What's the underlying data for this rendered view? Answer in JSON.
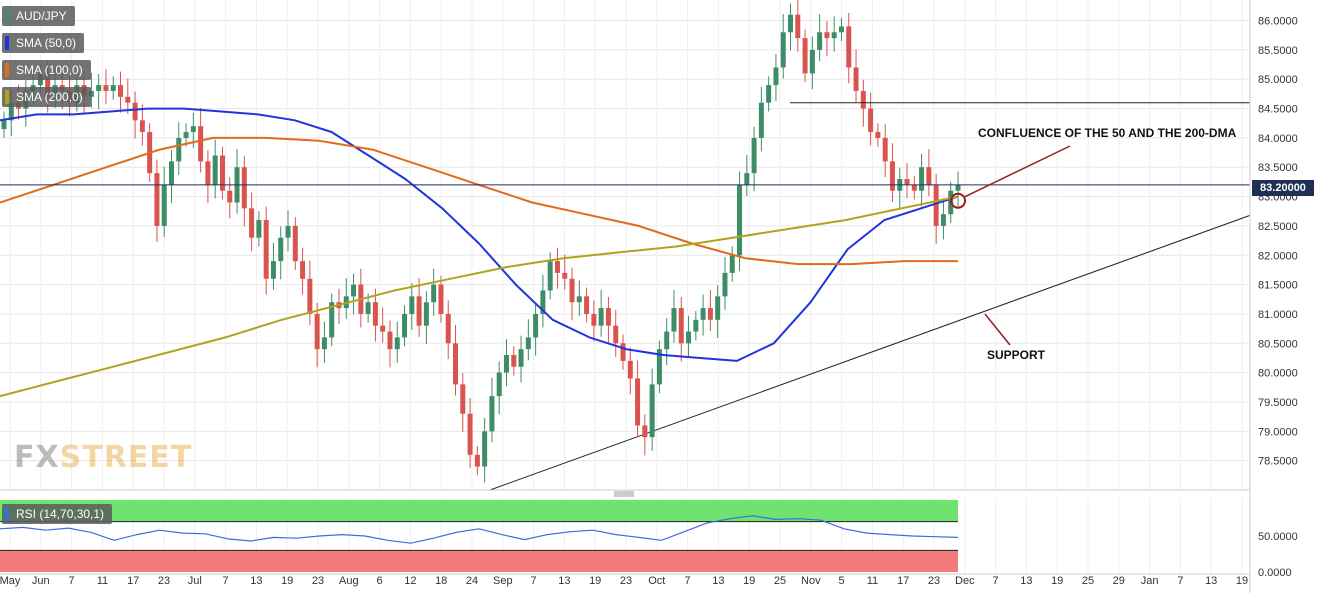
{
  "colors": {
    "sma50": "#2233dd",
    "sma100": "#e26a1b",
    "sma200": "#b2a21e",
    "bull": "#3e8d69",
    "bear": "#d9534f",
    "rsi_line": "#3a6fd8",
    "overbought": "#6fe36f",
    "oversold": "#f27b7b",
    "annot_line": "#9b1c1c"
  },
  "legend": {
    "symbol": "AUD/JPY",
    "sma50": "SMA (50,0)",
    "sma100": "SMA (100,0)",
    "sma200": "SMA (200,0)",
    "rsi": "RSI (14,70,30,1)"
  },
  "current_price_label": "83.20000",
  "annotations": {
    "confluence": "CONFLUENCE OF THE 50 AND THE 200-DMA",
    "support": "SUPPORT"
  },
  "logo": {
    "part1": "FX",
    "part2": "STREET"
  },
  "chart_data": [
    {
      "type": "candlestick",
      "title": "AUD/JPY",
      "ylim": [
        78.0,
        86.35
      ],
      "yticks": [
        "86.0000",
        "85.5000",
        "85.0000",
        "84.5000",
        "84.0000",
        "83.5000",
        "83.0000",
        "82.5000",
        "82.0000",
        "81.5000",
        "81.0000",
        "80.5000",
        "80.0000",
        "79.5000",
        "79.0000",
        "78.5000"
      ],
      "xticks": [
        "May",
        "Jun",
        "7",
        "11",
        "17",
        "23",
        "Jul",
        "7",
        "13",
        "19",
        "23",
        "Aug",
        "6",
        "12",
        "18",
        "24",
        "Sep",
        "7",
        "13",
        "19",
        "23",
        "Oct",
        "7",
        "13",
        "19",
        "25",
        "Nov",
        "5",
        "11",
        "17",
        "23",
        "Dec",
        "7",
        "13",
        "19",
        "25",
        "29",
        "Jan",
        "7",
        "13",
        "19"
      ],
      "closes": [
        84.3,
        84.6,
        84.5,
        84.8,
        84.9,
        85.1,
        84.7,
        84.9,
        84.8,
        84.6,
        84.9,
        84.7,
        84.8,
        84.9,
        84.8,
        84.9,
        84.7,
        84.6,
        84.3,
        84.1,
        83.4,
        82.5,
        83.2,
        83.6,
        84.0,
        84.1,
        84.2,
        83.6,
        83.2,
        83.7,
        83.1,
        82.9,
        83.5,
        82.8,
        82.3,
        82.6,
        81.6,
        81.9,
        82.3,
        82.5,
        81.9,
        81.6,
        81.0,
        80.4,
        80.6,
        81.2,
        81.1,
        81.3,
        81.5,
        81.0,
        81.2,
        80.8,
        80.7,
        80.4,
        80.6,
        81.0,
        81.3,
        80.8,
        81.2,
        81.5,
        81.0,
        80.5,
        79.8,
        79.3,
        78.6,
        78.4,
        79.0,
        79.6,
        80.0,
        80.3,
        80.1,
        80.4,
        80.6,
        81.0,
        81.4,
        81.9,
        81.7,
        81.6,
        81.2,
        81.3,
        81.0,
        80.8,
        81.1,
        80.8,
        80.5,
        80.2,
        79.9,
        79.1,
        78.9,
        79.8,
        80.4,
        80.7,
        81.1,
        80.5,
        80.7,
        80.9,
        81.1,
        80.9,
        81.3,
        81.7,
        82.0,
        83.2,
        83.4,
        84.0,
        84.6,
        84.9,
        85.2,
        85.8,
        86.1,
        85.7,
        85.1,
        85.5,
        85.8,
        85.7,
        85.8,
        85.9,
        85.2,
        84.8,
        84.5,
        84.1,
        84.0,
        83.6,
        83.1,
        83.3,
        83.2,
        83.1,
        83.5,
        83.2,
        82.5,
        82.7,
        83.1,
        83.2
      ],
      "series": [
        {
          "name": "SMA (50,0)",
          "values": [
            84.3,
            84.4,
            84.4,
            84.45,
            84.5,
            84.5,
            84.45,
            84.4,
            84.3,
            84.1,
            83.7,
            83.3,
            82.8,
            82.2,
            81.5,
            80.9,
            80.6,
            80.4,
            80.3,
            80.25,
            80.2,
            80.5,
            81.2,
            82.1,
            82.6,
            82.8,
            83.0
          ]
        },
        {
          "name": "SMA (100,0)",
          "values": [
            82.9,
            83.2,
            83.5,
            83.8,
            84.0,
            84.0,
            83.95,
            83.8,
            83.5,
            83.2,
            82.9,
            82.7,
            82.5,
            82.2,
            81.95,
            81.85,
            81.85,
            81.9,
            81.9
          ]
        },
        {
          "name": "SMA (200,0)",
          "values": [
            79.6,
            79.85,
            80.1,
            80.35,
            80.6,
            80.9,
            81.15,
            81.4,
            81.6,
            81.8,
            81.95,
            82.05,
            82.15,
            82.3,
            82.45,
            82.6,
            82.8,
            83.0
          ]
        }
      ]
    },
    {
      "type": "line",
      "title": "RSI (14,70,30,1)",
      "ylim": [
        0,
        100
      ],
      "yticks": [
        "50.0000",
        "0.0000"
      ],
      "series": [
        {
          "name": "RSI (14,70,30,1)",
          "values": [
            60,
            62,
            58,
            61,
            55,
            44,
            52,
            58,
            54,
            53,
            46,
            43,
            48,
            47,
            50,
            52,
            50,
            44,
            40,
            47,
            55,
            60,
            52,
            45,
            52,
            56,
            58,
            52,
            48,
            44,
            56,
            68,
            74,
            78,
            73,
            74,
            72,
            60,
            54,
            52,
            50,
            49,
            48
          ]
        }
      ]
    }
  ]
}
